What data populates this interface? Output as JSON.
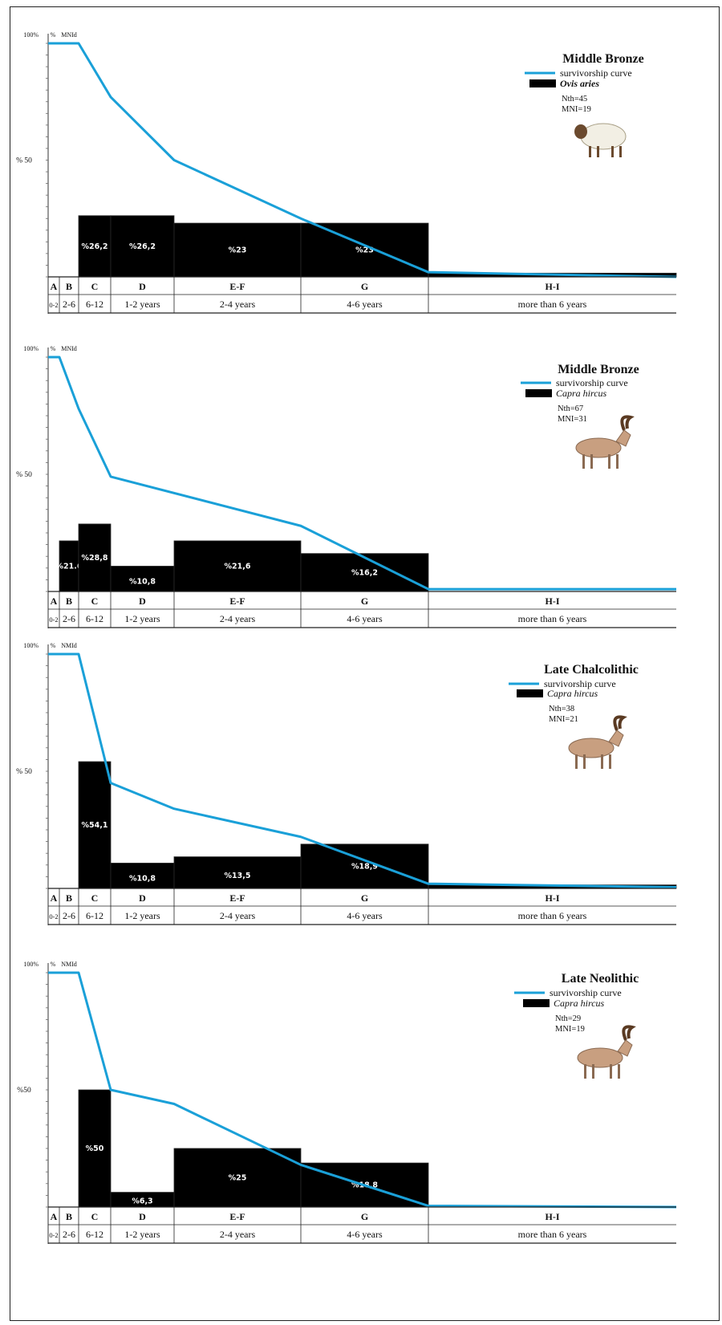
{
  "chart_data": [
    {
      "type": "bar",
      "title": "Middle Bronze",
      "legend": {
        "line_label": "survivorship curve",
        "bar_label": "Ovis aries"
      },
      "stats": [
        "Nth=45",
        "MNI=19"
      ],
      "axis_marks": {
        "top": "100%",
        "mid": "% 50",
        "hdr_pct": "%",
        "hdr_mni": "MNId"
      },
      "illustration": "sheep-icon",
      "categories": [
        "A",
        "B",
        "C",
        "D",
        "E-F",
        "G",
        "H-I"
      ],
      "age_ranges": [
        "0-2",
        "2-6",
        "6-12",
        "1-2 years",
        "2-4 years",
        "4-6 years",
        "more than 6 years"
      ],
      "bars": [
        {
          "category": "A",
          "value": 0,
          "label": ""
        },
        {
          "category": "B",
          "value": 0,
          "label": ""
        },
        {
          "category": "C",
          "value": 26.2,
          "label": "%26,2"
        },
        {
          "category": "D",
          "value": 26.2,
          "label": "%26,2"
        },
        {
          "category": "E-F",
          "value": 23,
          "label": "%23"
        },
        {
          "category": "G",
          "value": 23,
          "label": "%23"
        },
        {
          "category": "H-I",
          "value": 1.6,
          "label": ""
        }
      ],
      "survivorship": [
        [
          0,
          100
        ],
        [
          2,
          100
        ],
        [
          3,
          77
        ],
        [
          5,
          50
        ],
        [
          8,
          25
        ],
        [
          12,
          2
        ],
        [
          20,
          0
        ]
      ],
      "ylim": [
        0,
        100
      ]
    },
    {
      "type": "bar",
      "title": "Middle Bronze",
      "legend": {
        "line_label": "survivorship curve",
        "bar_label": "Capra hircus"
      },
      "stats": [
        "Nth=67",
        "MNI=31"
      ],
      "axis_marks": {
        "top": "100%",
        "mid": "% 50",
        "hdr_pct": "%",
        "hdr_mni": "MNId"
      },
      "illustration": "goat-icon",
      "categories": [
        "A",
        "B",
        "C",
        "D",
        "E-F",
        "G",
        "H-I"
      ],
      "age_ranges": [
        "0-2",
        "2-6",
        "6-12",
        "1-2 years",
        "2-4 years",
        "4-6 years",
        "more than 6 years"
      ],
      "bars": [
        {
          "category": "A",
          "value": 0,
          "label": ""
        },
        {
          "category": "B",
          "value": 21.6,
          "label": "%21.6"
        },
        {
          "category": "C",
          "value": 28.8,
          "label": "%28,8"
        },
        {
          "category": "D",
          "value": 10.8,
          "label": "%10,8"
        },
        {
          "category": "E-F",
          "value": 21.6,
          "label": "%21,6"
        },
        {
          "category": "G",
          "value": 16.2,
          "label": "%16,2"
        },
        {
          "category": "H-I",
          "value": 0,
          "label": ""
        }
      ],
      "survivorship": [
        [
          0,
          100
        ],
        [
          0.5,
          100
        ],
        [
          2,
          78
        ],
        [
          4,
          49
        ],
        [
          8,
          28
        ],
        [
          12,
          1
        ],
        [
          20,
          1
        ]
      ],
      "ylim": [
        0,
        100
      ]
    },
    {
      "type": "bar",
      "title": "Late Chalcolithic",
      "legend": {
        "line_label": "survivorship curve",
        "bar_label": "Capra hircus"
      },
      "stats": [
        "Nth=38",
        "MNI=21"
      ],
      "axis_marks": {
        "top": "100%",
        "mid": "% 50",
        "hdr_pct": "%",
        "hdr_mni": "NMId"
      },
      "illustration": "goat-icon",
      "categories": [
        "A",
        "B",
        "C",
        "D",
        "E-F",
        "G",
        "H-I"
      ],
      "age_ranges": [
        "0-2",
        "2-6",
        "6-12",
        "1-2 years",
        "2-4 years",
        "4-6 years",
        "more than 6 years"
      ],
      "bars": [
        {
          "category": "A",
          "value": 0,
          "label": ""
        },
        {
          "category": "B",
          "value": 0,
          "label": ""
        },
        {
          "category": "C",
          "value": 54.1,
          "label": "%54,1"
        },
        {
          "category": "D",
          "value": 10.8,
          "label": "%10,8"
        },
        {
          "category": "E-F",
          "value": 13.5,
          "label": "%13,5"
        },
        {
          "category": "G",
          "value": 18.9,
          "label": "%18,9"
        },
        {
          "category": "H-I",
          "value": 1.5,
          "label": ""
        }
      ],
      "survivorship": [
        [
          0,
          100
        ],
        [
          2,
          100
        ],
        [
          3,
          45
        ],
        [
          5,
          34
        ],
        [
          8,
          22
        ],
        [
          12,
          2
        ],
        [
          20,
          0.5
        ]
      ],
      "ylim": [
        0,
        100
      ]
    },
    {
      "type": "bar",
      "title": "Late Neolithic",
      "legend": {
        "line_label": "survivorship curve",
        "bar_label": "Capra hircus"
      },
      "stats": [
        "Nth=29",
        "MNI=19"
      ],
      "axis_marks": {
        "top": "100%",
        "mid": "%50",
        "hdr_pct": "%",
        "hdr_mni": "NMId"
      },
      "illustration": "goat-icon",
      "categories": [
        "A",
        "B",
        "C",
        "D",
        "E-F",
        "G",
        "H-I"
      ],
      "age_ranges": [
        "0-2",
        "2-6",
        "6-12",
        "1-2 years",
        "2-4 years",
        "4-6 years",
        "more than 6 years"
      ],
      "bars": [
        {
          "category": "A",
          "value": 0,
          "label": ""
        },
        {
          "category": "B",
          "value": 0,
          "label": ""
        },
        {
          "category": "C",
          "value": 50,
          "label": "%50"
        },
        {
          "category": "D",
          "value": 6.3,
          "label": "%6,3"
        },
        {
          "category": "E-F",
          "value": 25,
          "label": "%25"
        },
        {
          "category": "G",
          "value": 18.8,
          "label": "%18,8"
        },
        {
          "category": "H-I",
          "value": 0,
          "label": ""
        }
      ],
      "survivorship": [
        [
          0,
          100
        ],
        [
          2,
          100
        ],
        [
          3,
          50
        ],
        [
          5,
          44
        ],
        [
          8,
          18
        ],
        [
          12,
          0.5
        ],
        [
          20,
          0
        ]
      ],
      "ylim": [
        0,
        100
      ]
    }
  ]
}
